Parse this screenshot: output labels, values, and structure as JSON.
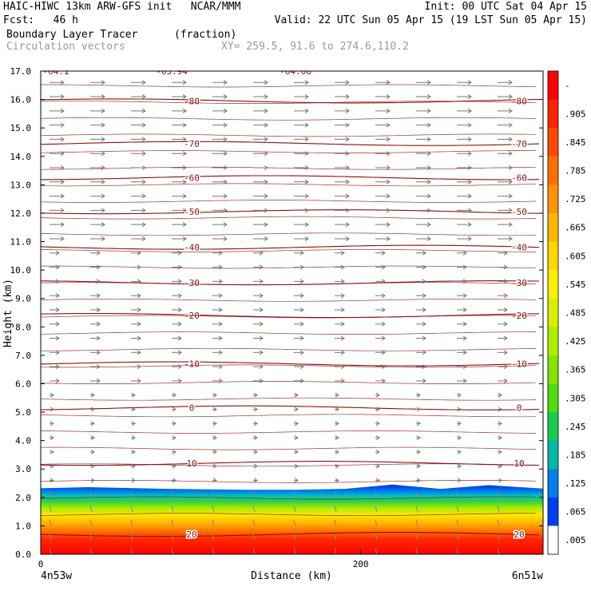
{
  "header": {
    "line1_left": "HAIC-HIWC 13km ARW-GFS init   NCAR/MMM",
    "line1_right": "Init: 00 UTC Sat 04 Apr 15",
    "line2_left": "Fcst:   46 h",
    "line2_right": "Valid: 22 UTC Sun 05 Apr 15 (19 LST Sun 05 Apr 15)",
    "line3_left": "Boundary Layer Tracer",
    "line3_unit": "(fraction)",
    "line4_left": "Circulation vectors",
    "line4_right": "XY= 259.5, 91.6 to 274.6,110.2"
  },
  "chart_data": {
    "type": "cross-section",
    "xlabel": "Distance (km)",
    "ylabel": "Height (km)",
    "xlim": [
      0,
      314
    ],
    "ylim": [
      0,
      17
    ],
    "x_ticks": [
      0,
      200
    ],
    "x_end_labels": [
      "4n53w",
      "6n51w"
    ],
    "y_ticks": [
      "0.0",
      "1.0",
      "2.0",
      "3.0",
      "4.0",
      "5.0",
      "6.0",
      "7.0",
      "8.0",
      "9.0",
      "10.0",
      "11.0",
      "12.0",
      "13.0",
      "14.0",
      "15.0",
      "16.0",
      "17.0"
    ],
    "fill_field": {
      "name": "Boundary Layer Tracer",
      "units": "fraction",
      "colorbar_labels": [
        "-",
        ".905",
        ".845",
        ".785",
        ".725",
        ".665",
        ".605",
        ".545",
        ".485",
        ".425",
        ".365",
        ".305",
        ".245",
        ".185",
        ".125",
        ".065",
        ".005"
      ],
      "colorbar_colors": [
        "#ff0000",
        "#ff2400",
        "#ff4a00",
        "#ff6e00",
        "#ff9200",
        "#ffb600",
        "#ffd800",
        "#f8f000",
        "#d8f000",
        "#b0ec00",
        "#84e400",
        "#50dc10",
        "#18cc50",
        "#00b8a8",
        "#0080e8",
        "#0040f0",
        "#ffffff"
      ],
      "top_height_km": [
        2.32,
        2.36,
        2.3,
        2.27,
        2.27,
        2.3,
        2.45,
        2.3,
        2.43,
        2.31
      ],
      "top_distance_km": [
        0,
        30,
        80,
        130,
        160,
        190,
        220,
        250,
        280,
        314
      ]
    },
    "contours": {
      "name": "Temperature",
      "levels": [
        {
          "label": "20",
          "height_km": 0.7
        },
        {
          "label": "10",
          "height_km": 3.2
        },
        {
          "label": "0",
          "height_km": 5.15
        },
        {
          "label": "-10",
          "height_km": 6.7
        },
        {
          "label": "-20",
          "height_km": 8.4
        },
        {
          "label": "-30",
          "height_km": 9.55
        },
        {
          "label": "-40",
          "height_km": 10.8
        },
        {
          "label": "-50",
          "height_km": 12.05
        },
        {
          "label": "-60",
          "height_km": 13.25
        },
        {
          "label": "-70",
          "height_km": 14.45
        },
        {
          "label": "-80",
          "height_km": 15.95
        }
      ],
      "top_labels": [
        "-64.1",
        "-63.94",
        "-64.08"
      ],
      "color": "#8b1010"
    },
    "vectors": {
      "name": "Circulation vectors",
      "direction": "west-to-east aloft, weak below 6 km, southward-tilted in boundary layer"
    }
  }
}
